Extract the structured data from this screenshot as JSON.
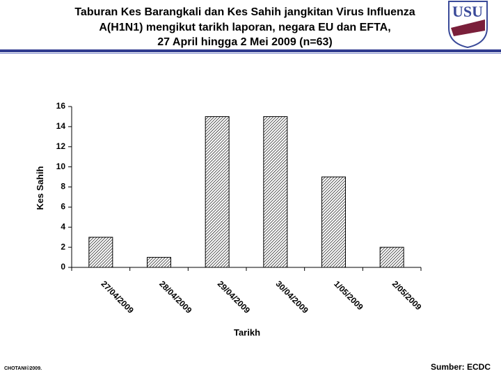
{
  "header": {
    "title_lines": [
      "Taburan Kes Barangkali dan Kes Sahih jangkitan Virus Influenza",
      "A(H1N1) mengikut tarikh laporan, negara EU dan EFTA,",
      "27 April hingga 2 Mei 2009 (n=63)"
    ],
    "logo": "USU"
  },
  "chart_data": {
    "type": "bar",
    "x_label": "Tarikh",
    "y_label": "Kes Sahih",
    "categories": [
      "27/04/2009",
      "28/04/2009",
      "29/04/2009",
      "30/04/2009",
      "1/05/2009",
      "2/05/2009"
    ],
    "values": [
      3,
      1,
      15,
      15,
      9,
      2
    ],
    "color": "#000000",
    "ylim": [
      0,
      16
    ],
    "yticks": [
      0,
      2,
      4,
      6,
      8,
      10,
      12,
      14,
      16
    ],
    "grid": false
  },
  "footer": {
    "left": "CHOTANI©2009.",
    "right": "Sumber: ECDC"
  }
}
